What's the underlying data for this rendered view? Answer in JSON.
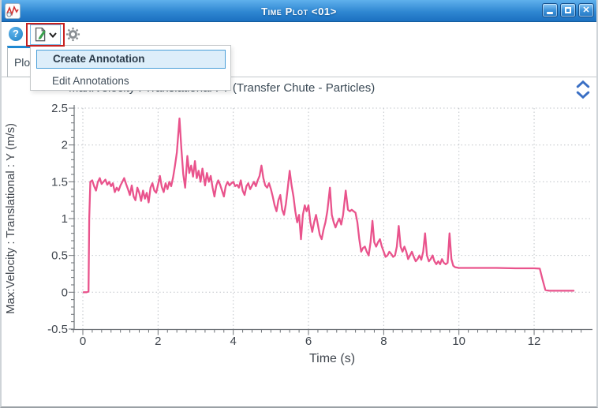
{
  "window": {
    "title": "Time Plot <01>",
    "controls": {
      "close_glyph": "✕"
    }
  },
  "icons": {
    "app": "time-plot-wave-icon",
    "help": "?",
    "annotation": "page-with-green-pencil",
    "dropdown": "chevron-down",
    "settings": "gear",
    "collapse_up": "chevron-up",
    "collapse_down": "chevron-down",
    "minimize": "minimize-bar",
    "maximize": "maximize-box",
    "close": "close-x"
  },
  "tabs": [
    {
      "label": "Plot"
    }
  ],
  "menu": {
    "items": [
      {
        "label": "Create Annotation",
        "highlighted": true
      },
      {
        "label": "Edit Annotations",
        "highlighted": false
      }
    ]
  },
  "colors": {
    "titlebar_blue": "#2f87d2",
    "tab_accent": "#1e88d2",
    "menu_highlight_bg": "#ddeefa",
    "menu_highlight_border": "#4a9fd8",
    "annotation_overlay_red": "#c6201f",
    "series_pink": "#e9538c",
    "axis_gray": "#6c7176",
    "grid_gray": "#c0c4c9",
    "text_dark": "#3b4a56"
  },
  "chart_data": {
    "type": "line",
    "title": "Max:Velocity : Translational : Y (Transfer Chute - Particles)",
    "xlabel": "Time (s)",
    "ylabel": "Max:Velocity : Translational : Y (m/s)",
    "xlim": [
      -0.25,
      13.55
    ],
    "ylim": [
      -0.5,
      2.5
    ],
    "x_ticks": [
      0,
      2,
      4,
      6,
      8,
      10,
      12
    ],
    "y_ticks": [
      -0.5,
      0,
      0.5,
      1,
      1.5,
      2,
      2.5
    ],
    "grid": true,
    "legend": "none",
    "line_color": "#e9538c",
    "series": [
      {
        "name": "Max:Velocity : Translational : Y",
        "points": [
          [
            0.02,
            0
          ],
          [
            0.1,
            0
          ],
          [
            0.15,
            0.01
          ],
          [
            0.17,
            1.0
          ],
          [
            0.2,
            1.5
          ],
          [
            0.25,
            1.52
          ],
          [
            0.3,
            1.44
          ],
          [
            0.35,
            1.38
          ],
          [
            0.4,
            1.5
          ],
          [
            0.45,
            1.55
          ],
          [
            0.5,
            1.47
          ],
          [
            0.55,
            1.5
          ],
          [
            0.6,
            1.53
          ],
          [
            0.65,
            1.46
          ],
          [
            0.7,
            1.5
          ],
          [
            0.75,
            1.44
          ],
          [
            0.8,
            1.48
          ],
          [
            0.85,
            1.36
          ],
          [
            0.9,
            1.42
          ],
          [
            0.95,
            1.38
          ],
          [
            1.0,
            1.45
          ],
          [
            1.05,
            1.5
          ],
          [
            1.1,
            1.55
          ],
          [
            1.15,
            1.47
          ],
          [
            1.2,
            1.4
          ],
          [
            1.25,
            1.32
          ],
          [
            1.3,
            1.45
          ],
          [
            1.35,
            1.3
          ],
          [
            1.4,
            1.25
          ],
          [
            1.45,
            1.42
          ],
          [
            1.5,
            1.35
          ],
          [
            1.55,
            1.24
          ],
          [
            1.6,
            1.38
          ],
          [
            1.65,
            1.27
          ],
          [
            1.7,
            1.35
          ],
          [
            1.75,
            1.22
          ],
          [
            1.8,
            1.42
          ],
          [
            1.85,
            1.48
          ],
          [
            1.9,
            1.38
          ],
          [
            1.95,
            1.35
          ],
          [
            2.0,
            1.46
          ],
          [
            2.05,
            1.58
          ],
          [
            2.1,
            1.43
          ],
          [
            2.15,
            1.36
          ],
          [
            2.2,
            1.48
          ],
          [
            2.25,
            1.4
          ],
          [
            2.3,
            1.5
          ],
          [
            2.35,
            1.44
          ],
          [
            2.4,
            1.56
          ],
          [
            2.45,
            1.72
          ],
          [
            2.5,
            1.9
          ],
          [
            2.57,
            2.36
          ],
          [
            2.62,
            1.95
          ],
          [
            2.67,
            1.6
          ],
          [
            2.72,
            1.42
          ],
          [
            2.78,
            1.85
          ],
          [
            2.83,
            1.62
          ],
          [
            2.88,
            1.72
          ],
          [
            2.93,
            1.57
          ],
          [
            2.98,
            1.78
          ],
          [
            3.03,
            1.55
          ],
          [
            3.08,
            1.65
          ],
          [
            3.13,
            1.5
          ],
          [
            3.18,
            1.68
          ],
          [
            3.25,
            1.45
          ],
          [
            3.3,
            1.62
          ],
          [
            3.35,
            1.5
          ],
          [
            3.4,
            1.58
          ],
          [
            3.45,
            1.42
          ],
          [
            3.5,
            1.3
          ],
          [
            3.55,
            1.45
          ],
          [
            3.6,
            1.52
          ],
          [
            3.65,
            1.46
          ],
          [
            3.7,
            1.38
          ],
          [
            3.75,
            1.3
          ],
          [
            3.8,
            1.44
          ],
          [
            3.85,
            1.5
          ],
          [
            3.9,
            1.45
          ],
          [
            3.95,
            1.48
          ],
          [
            4.0,
            1.5
          ],
          [
            4.05,
            1.44
          ],
          [
            4.1,
            1.46
          ],
          [
            4.15,
            1.42
          ],
          [
            4.2,
            1.52
          ],
          [
            4.25,
            1.38
          ],
          [
            4.3,
            1.32
          ],
          [
            4.35,
            1.44
          ],
          [
            4.4,
            1.48
          ],
          [
            4.45,
            1.4
          ],
          [
            4.5,
            1.45
          ],
          [
            4.55,
            1.5
          ],
          [
            4.6,
            1.44
          ],
          [
            4.65,
            1.52
          ],
          [
            4.7,
            1.58
          ],
          [
            4.75,
            1.72
          ],
          [
            4.8,
            1.55
          ],
          [
            4.85,
            1.45
          ],
          [
            4.9,
            1.42
          ],
          [
            4.95,
            1.48
          ],
          [
            5.0,
            1.4
          ],
          [
            5.05,
            1.3
          ],
          [
            5.1,
            1.18
          ],
          [
            5.15,
            1.1
          ],
          [
            5.2,
            1.25
          ],
          [
            5.25,
            1.32
          ],
          [
            5.3,
            1.12
          ],
          [
            5.35,
            1.05
          ],
          [
            5.4,
            1.2
          ],
          [
            5.45,
            1.42
          ],
          [
            5.5,
            1.65
          ],
          [
            5.55,
            1.45
          ],
          [
            5.6,
            1.3
          ],
          [
            5.65,
            1.1
          ],
          [
            5.7,
            0.95
          ],
          [
            5.75,
            1.05
          ],
          [
            5.8,
            0.72
          ],
          [
            5.85,
            1.05
          ],
          [
            5.9,
            1.18
          ],
          [
            5.95,
            1.1
          ],
          [
            6.0,
            1.18
          ],
          [
            6.05,
            0.95
          ],
          [
            6.1,
            0.82
          ],
          [
            6.15,
            0.95
          ],
          [
            6.2,
            1.05
          ],
          [
            6.25,
            0.92
          ],
          [
            6.3,
            0.78
          ],
          [
            6.35,
            0.72
          ],
          [
            6.4,
            0.85
          ],
          [
            6.45,
            0.95
          ],
          [
            6.5,
            1.1
          ],
          [
            6.57,
            1.42
          ],
          [
            6.62,
            1.05
          ],
          [
            6.67,
            0.95
          ],
          [
            6.72,
            0.88
          ],
          [
            6.77,
            0.95
          ],
          [
            6.82,
            1.0
          ],
          [
            6.87,
            0.92
          ],
          [
            6.92,
            1.05
          ],
          [
            6.99,
            1.38
          ],
          [
            7.05,
            1.12
          ],
          [
            7.1,
            1.1
          ],
          [
            7.15,
            1.12
          ],
          [
            7.2,
            1.1
          ],
          [
            7.25,
            1.08
          ],
          [
            7.3,
            0.95
          ],
          [
            7.35,
            0.72
          ],
          [
            7.4,
            0.55
          ],
          [
            7.45,
            0.6
          ],
          [
            7.5,
            0.62
          ],
          [
            7.55,
            0.55
          ],
          [
            7.6,
            0.5
          ],
          [
            7.65,
            0.68
          ],
          [
            7.7,
            0.97
          ],
          [
            7.75,
            0.68
          ],
          [
            7.8,
            0.62
          ],
          [
            7.85,
            0.68
          ],
          [
            7.9,
            0.72
          ],
          [
            7.95,
            0.62
          ],
          [
            8.0,
            0.55
          ],
          [
            8.05,
            0.48
          ],
          [
            8.1,
            0.5
          ],
          [
            8.15,
            0.55
          ],
          [
            8.2,
            0.52
          ],
          [
            8.25,
            0.48
          ],
          [
            8.3,
            0.5
          ],
          [
            8.35,
            0.62
          ],
          [
            8.4,
            0.9
          ],
          [
            8.45,
            0.62
          ],
          [
            8.5,
            0.55
          ],
          [
            8.55,
            0.62
          ],
          [
            8.6,
            0.55
          ],
          [
            8.65,
            0.45
          ],
          [
            8.7,
            0.5
          ],
          [
            8.75,
            0.55
          ],
          [
            8.8,
            0.48
          ],
          [
            8.85,
            0.42
          ],
          [
            8.9,
            0.45
          ],
          [
            8.95,
            0.5
          ],
          [
            9.0,
            0.44
          ],
          [
            9.05,
            0.55
          ],
          [
            9.1,
            0.8
          ],
          [
            9.15,
            0.5
          ],
          [
            9.2,
            0.42
          ],
          [
            9.25,
            0.45
          ],
          [
            9.3,
            0.5
          ],
          [
            9.35,
            0.42
          ],
          [
            9.4,
            0.38
          ],
          [
            9.45,
            0.42
          ],
          [
            9.5,
            0.38
          ],
          [
            9.55,
            0.45
          ],
          [
            9.6,
            0.4
          ],
          [
            9.65,
            0.38
          ],
          [
            9.7,
            0.4
          ],
          [
            9.75,
            0.8
          ],
          [
            9.8,
            0.45
          ],
          [
            9.85,
            0.36
          ],
          [
            9.9,
            0.34
          ],
          [
            10.0,
            0.33
          ],
          [
            10.5,
            0.33
          ],
          [
            11.0,
            0.33
          ],
          [
            11.5,
            0.325
          ],
          [
            12.0,
            0.325
          ],
          [
            12.15,
            0.32
          ],
          [
            12.22,
            0.18
          ],
          [
            12.3,
            0.03
          ],
          [
            12.4,
            0.02
          ],
          [
            12.6,
            0.02
          ],
          [
            12.8,
            0.02
          ],
          [
            13.0,
            0.02
          ],
          [
            13.05,
            0.02
          ]
        ]
      }
    ]
  }
}
